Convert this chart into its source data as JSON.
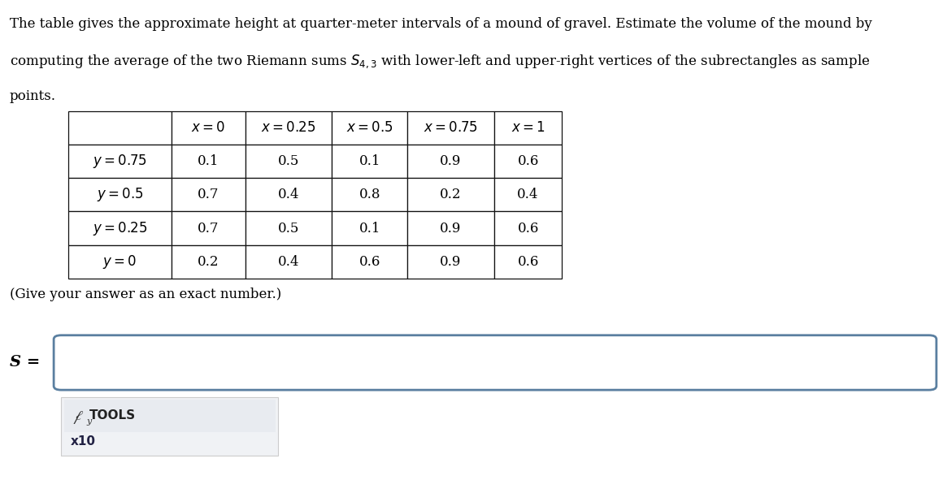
{
  "title_lines": [
    "The table gives the approximate height at quarter-meter intervals of a mound of gravel. Estimate the volume of the mound by",
    "computing the average of the two Riemann sums $S_{4,3}$ with lower-left and upper-right vertices of the subrectangles as sample",
    "points."
  ],
  "col_headers": [
    "",
    "x = 0",
    "x = 0.25",
    "x = 0.5",
    "x = 0.75",
    "x = 1"
  ],
  "row_headers": [
    "y = 0.75",
    "y = 0.5",
    "y = 0.25",
    "y = 0"
  ],
  "table_data": [
    [
      "0.1",
      "0.5",
      "0.1",
      "0.9",
      "0.6"
    ],
    [
      "0.7",
      "0.4",
      "0.8",
      "0.2",
      "0.4"
    ],
    [
      "0.7",
      "0.5",
      "0.1",
      "0.9",
      "0.6"
    ],
    [
      "0.2",
      "0.4",
      "0.6",
      "0.9",
      "0.6"
    ]
  ],
  "note": "(Give your answer as an exact number.)",
  "s_label": "S =",
  "tools_line1": "TOOLS",
  "tools_subscript": "y",
  "x10_label": "x10",
  "bg_color": "#ffffff",
  "text_color": "#000000",
  "input_border_color": "#5a7fa0",
  "tools_bg_color": "#f0f2f5",
  "tools_border_color": "#cccccc",
  "table_fontsize": 12,
  "title_fontsize": 12,
  "note_fontsize": 12
}
